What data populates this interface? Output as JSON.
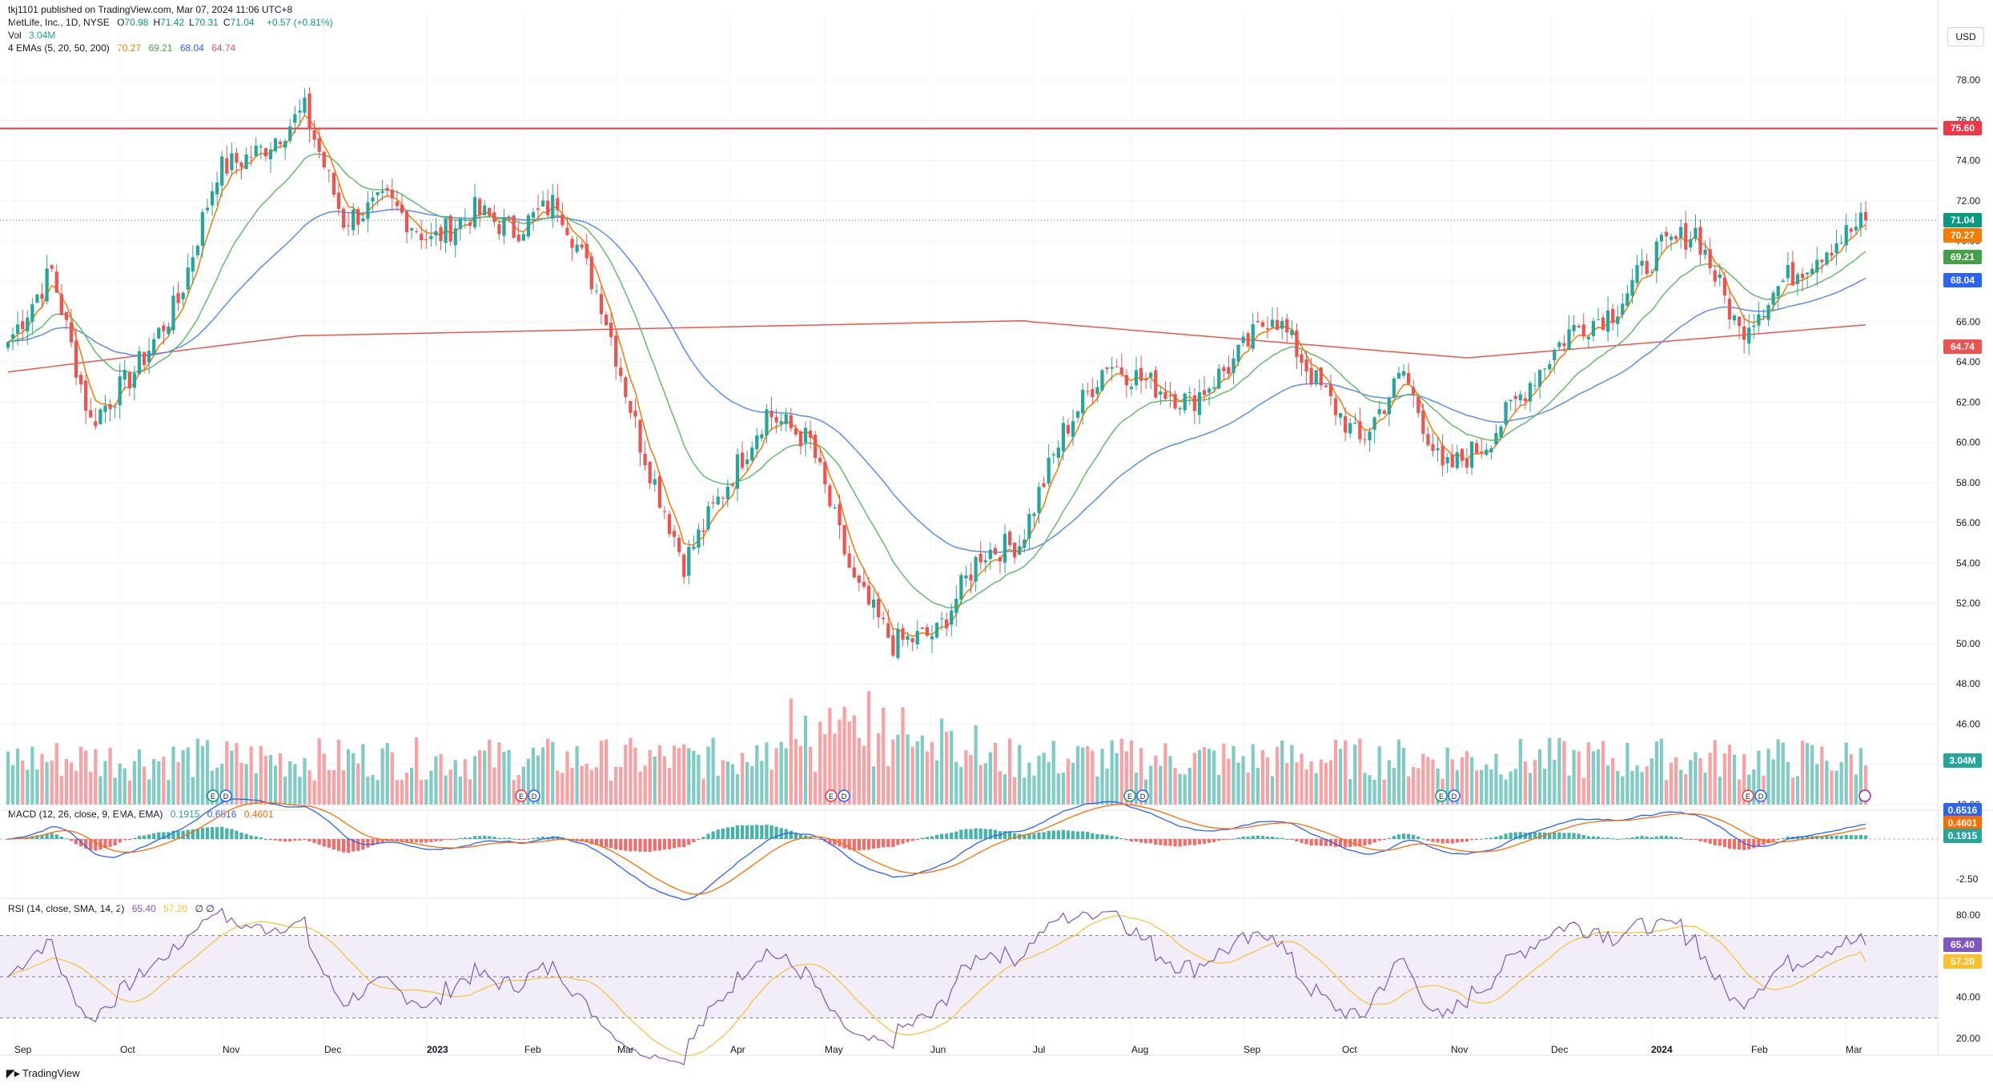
{
  "publisher_line": "tkj1101 published on TradingView.com, Mar 07, 2024 11:06 UTC+8",
  "header": {
    "symbol": "MetLife, Inc., 1D, NYSE",
    "ohlc": [
      {
        "k": "O",
        "v": "70.98"
      },
      {
        "k": "H",
        "v": "71.42"
      },
      {
        "k": "L",
        "v": "70.31"
      },
      {
        "k": "C",
        "v": "71.04"
      }
    ],
    "change": "+0.57 (+0.81%)",
    "vol_label": "Vol",
    "vol_value": "3.04M",
    "ema_label": "4 EMAs (5, 20, 50, 200)",
    "ema_values": [
      "70.27",
      "69.21",
      "68.04",
      "64.74"
    ],
    "macd_label": "MACD (12, 26, close, 9, EMA, EMA)",
    "macd_values": [
      "0.1915",
      "0.6516",
      "0.4601"
    ],
    "rsi_label": "RSI (14, close, SMA, 14, 2)",
    "rsi_values": [
      "65.40",
      "57.20"
    ],
    "rsi_extra": "∅ ∅"
  },
  "currency": "USD",
  "footer_logo": "TradingView",
  "colors": {
    "up": "#26a69a",
    "down": "#ef5350",
    "ema5": "#f57c00",
    "ema20": "#66bb6a",
    "ema50": "#5b8def",
    "ema200": "#ef5350",
    "hline": "#f23645",
    "macd": "#2962ff",
    "signal": "#ff6d00",
    "rsi": "#7e57c2",
    "rsi_ma": "#fbc02d"
  },
  "price_axis_labels": [
    "78.00",
    "76.00",
    "74.00",
    "72.00",
    "70.00",
    "68.00",
    "66.00",
    "64.00",
    "62.00",
    "60.00",
    "58.00",
    "56.00",
    "54.00",
    "52.00",
    "50.00",
    "48.00",
    "46.00",
    "44.00",
    "42.00"
  ],
  "macd_axis_labels": [
    "-2.50"
  ],
  "rsi_axis_labels": [
    "80.00",
    "40.00",
    "20.00"
  ],
  "time_axis_labels": [
    "Sep",
    "Oct",
    "Nov",
    "Dec",
    "2023",
    "Feb",
    "Mar",
    "Apr",
    "May",
    "Jun",
    "Jul",
    "Aug",
    "Sep",
    "Oct",
    "Nov",
    "Dec",
    "2024",
    "Feb",
    "Mar"
  ],
  "price_tags": [
    {
      "label": "75.60",
      "value": 75.6,
      "color": "#f23645"
    },
    {
      "label": "71.04",
      "value": 71.04,
      "color": "#089981"
    },
    {
      "label": "70.27",
      "value": 70.27,
      "color": "#f57c00"
    },
    {
      "label": "69.21",
      "value": 69.21,
      "color": "#43a047"
    },
    {
      "label": "68.04",
      "value": 68.04,
      "color": "#2962ff"
    },
    {
      "label": "64.74",
      "value": 64.74,
      "color": "#ef5350"
    }
  ],
  "volume_tag": "3.04M",
  "macd_tags": [
    "0.6516",
    "0.4601",
    "0.1915"
  ],
  "rsi_tags": [
    "65.40",
    "57.20"
  ],
  "chart_data": {
    "type": "candlestick",
    "symbol": "MetLife, Inc., 1D, NYSE",
    "horizontal_line": 75.6,
    "price_range": [
      42,
      79
    ],
    "macd_range": [
      -3.5,
      1.4
    ],
    "rsi_range": [
      15,
      85
    ],
    "rsi_levels": [
      70,
      50,
      30
    ],
    "close_keypoints": [
      {
        "month": "Sep",
        "close": 65.0
      },
      {
        "month": "Sep",
        "close": 68.5
      },
      {
        "month": "Sep",
        "close": 61.0
      },
      {
        "month": "Oct",
        "close": 63.5
      },
      {
        "month": "Oct",
        "close": 67.0
      },
      {
        "month": "Nov",
        "close": 73.5
      },
      {
        "month": "Nov",
        "close": 74.5
      },
      {
        "month": "Dec",
        "close": 76.5
      },
      {
        "month": "Dec",
        "close": 71.0
      },
      {
        "month": "2023",
        "close": 72.0
      },
      {
        "month": "2023",
        "close": 70.0
      },
      {
        "month": "Feb",
        "close": 71.5
      },
      {
        "month": "Feb",
        "close": 70.5
      },
      {
        "month": "Mar",
        "close": 72.0
      },
      {
        "month": "Mar",
        "close": 67.0
      },
      {
        "month": "Mar",
        "close": 60.0
      },
      {
        "month": "Mar",
        "close": 54.0
      },
      {
        "month": "Apr",
        "close": 58.0
      },
      {
        "month": "Apr",
        "close": 61.5
      },
      {
        "month": "May",
        "close": 60.0
      },
      {
        "month": "May",
        "close": 53.0
      },
      {
        "month": "May",
        "close": 50.0
      },
      {
        "month": "Jun",
        "close": 50.5
      },
      {
        "month": "Jun",
        "close": 54.5
      },
      {
        "month": "Jul",
        "close": 55.0
      },
      {
        "month": "Jul",
        "close": 60.5
      },
      {
        "month": "Aug",
        "close": 64.0
      },
      {
        "month": "Aug",
        "close": 63.0
      },
      {
        "month": "Sep",
        "close": 62.0
      },
      {
        "month": "Sep",
        "close": 64.0
      },
      {
        "month": "Sep",
        "close": 66.5
      },
      {
        "month": "Oct",
        "close": 63.0
      },
      {
        "month": "Oct",
        "close": 60.0
      },
      {
        "month": "Oct",
        "close": 63.5
      },
      {
        "month": "Nov",
        "close": 58.5
      },
      {
        "month": "Nov",
        "close": 60.0
      },
      {
        "month": "Dec",
        "close": 63.0
      },
      {
        "month": "Dec",
        "close": 65.5
      },
      {
        "month": "2024",
        "close": 66.5
      },
      {
        "month": "2024",
        "close": 69.5
      },
      {
        "month": "Feb",
        "close": 70.5
      },
      {
        "month": "Feb",
        "close": 65.5
      },
      {
        "month": "Feb",
        "close": 68.0
      },
      {
        "month": "Mar",
        "close": 69.5
      },
      {
        "month": "Mar",
        "close": 71.04
      }
    ],
    "ema_last": {
      "ema5": 70.27,
      "ema20": 69.21,
      "ema50": 68.04,
      "ema200": 64.74
    },
    "last_volume": "3.04M",
    "macd_last": {
      "hist": 0.1915,
      "macd": 0.6516,
      "signal": 0.4601
    },
    "rsi_last": {
      "rsi": 65.4,
      "rsi_ma": 57.2
    },
    "earnings_dividend_markers": [
      {
        "month": "Nov",
        "labels": [
          "E",
          "D"
        ]
      },
      {
        "month": "Feb",
        "labels": [
          "E",
          "D"
        ]
      },
      {
        "month": "May",
        "labels": [
          "E",
          "D"
        ]
      },
      {
        "month": "Aug",
        "labels": [
          "E",
          "D"
        ]
      },
      {
        "month": "Nov",
        "labels": [
          "E",
          "D"
        ]
      },
      {
        "month": "Feb",
        "labels": [
          "E",
          "D"
        ]
      }
    ]
  }
}
